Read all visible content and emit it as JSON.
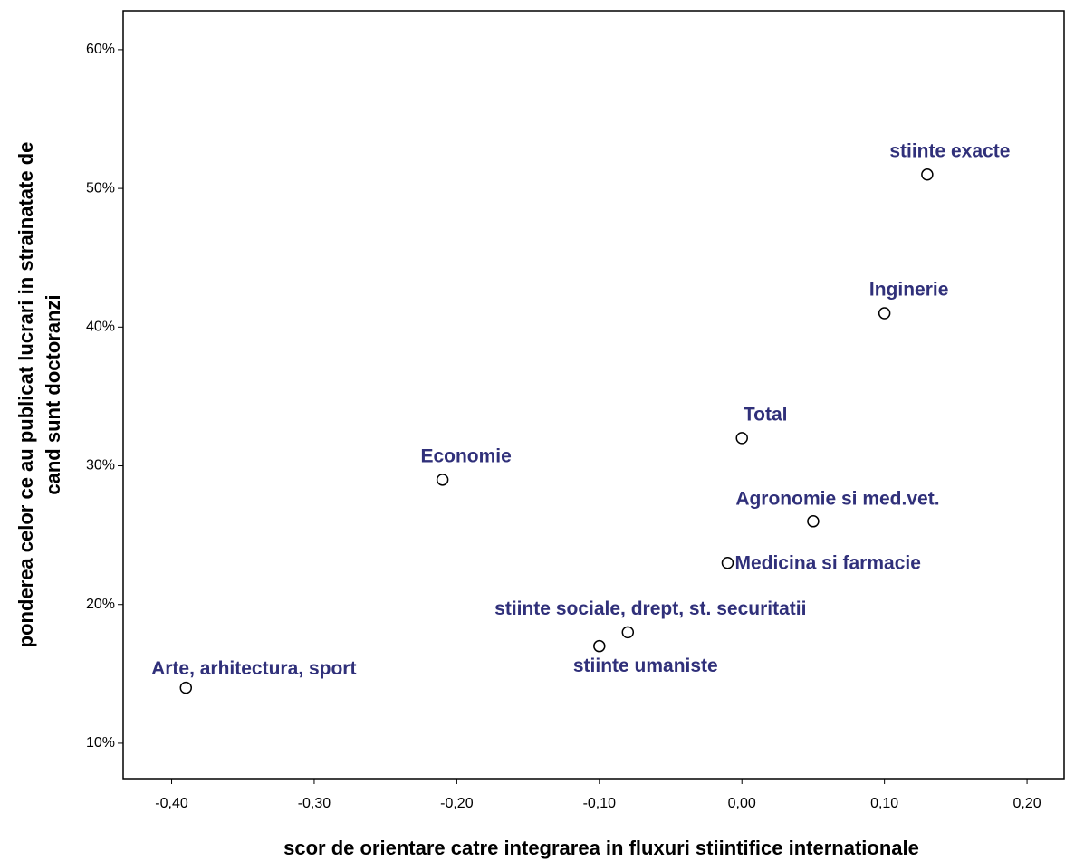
{
  "chart_data": {
    "type": "scatter",
    "xlabel": "scor de orientare catre integrarea in fluxuri stiintifice internationale",
    "ylabel": [
      "ponderea celor ce au publicat lucrari in strainatate de",
      "cand sunt doctoranzi"
    ],
    "labels": [
      "stiinte exacte",
      "Inginerie",
      "Total",
      "Economie",
      "Agronomie si med.vet.",
      "Medicina si farmacie",
      "stiinte sociale, drept, st. securitatii",
      "stiinte umaniste",
      "Arte, arhitectura, sport"
    ],
    "x": [
      0.13,
      0.1,
      0.0,
      -0.21,
      0.05,
      -0.01,
      -0.08,
      -0.1,
      -0.39
    ],
    "y": [
      51,
      41,
      32,
      29,
      26,
      23,
      18,
      17,
      14
    ],
    "label_color": "#30307a",
    "xlim": [
      -0.434,
      0.226
    ],
    "ylim": [
      7.45,
      62.8
    ],
    "xticks": [
      {
        "value": -0.4,
        "label": "-0,40"
      },
      {
        "value": -0.3,
        "label": "-0,30"
      },
      {
        "value": -0.2,
        "label": "-0,20"
      },
      {
        "value": -0.1,
        "label": "-0,10"
      },
      {
        "value": 0,
        "label": "0,00"
      },
      {
        "value": 0.1,
        "label": "0,10"
      },
      {
        "value": 0.2,
        "label": "0,20"
      }
    ],
    "yticks": [
      {
        "value": 10,
        "label": "10%"
      },
      {
        "value": 20,
        "label": "20%"
      },
      {
        "value": 30,
        "label": "30%"
      },
      {
        "value": 40,
        "label": "40%"
      },
      {
        "value": 50,
        "label": "50%"
      },
      {
        "value": 60,
        "label": "60%"
      }
    ]
  }
}
